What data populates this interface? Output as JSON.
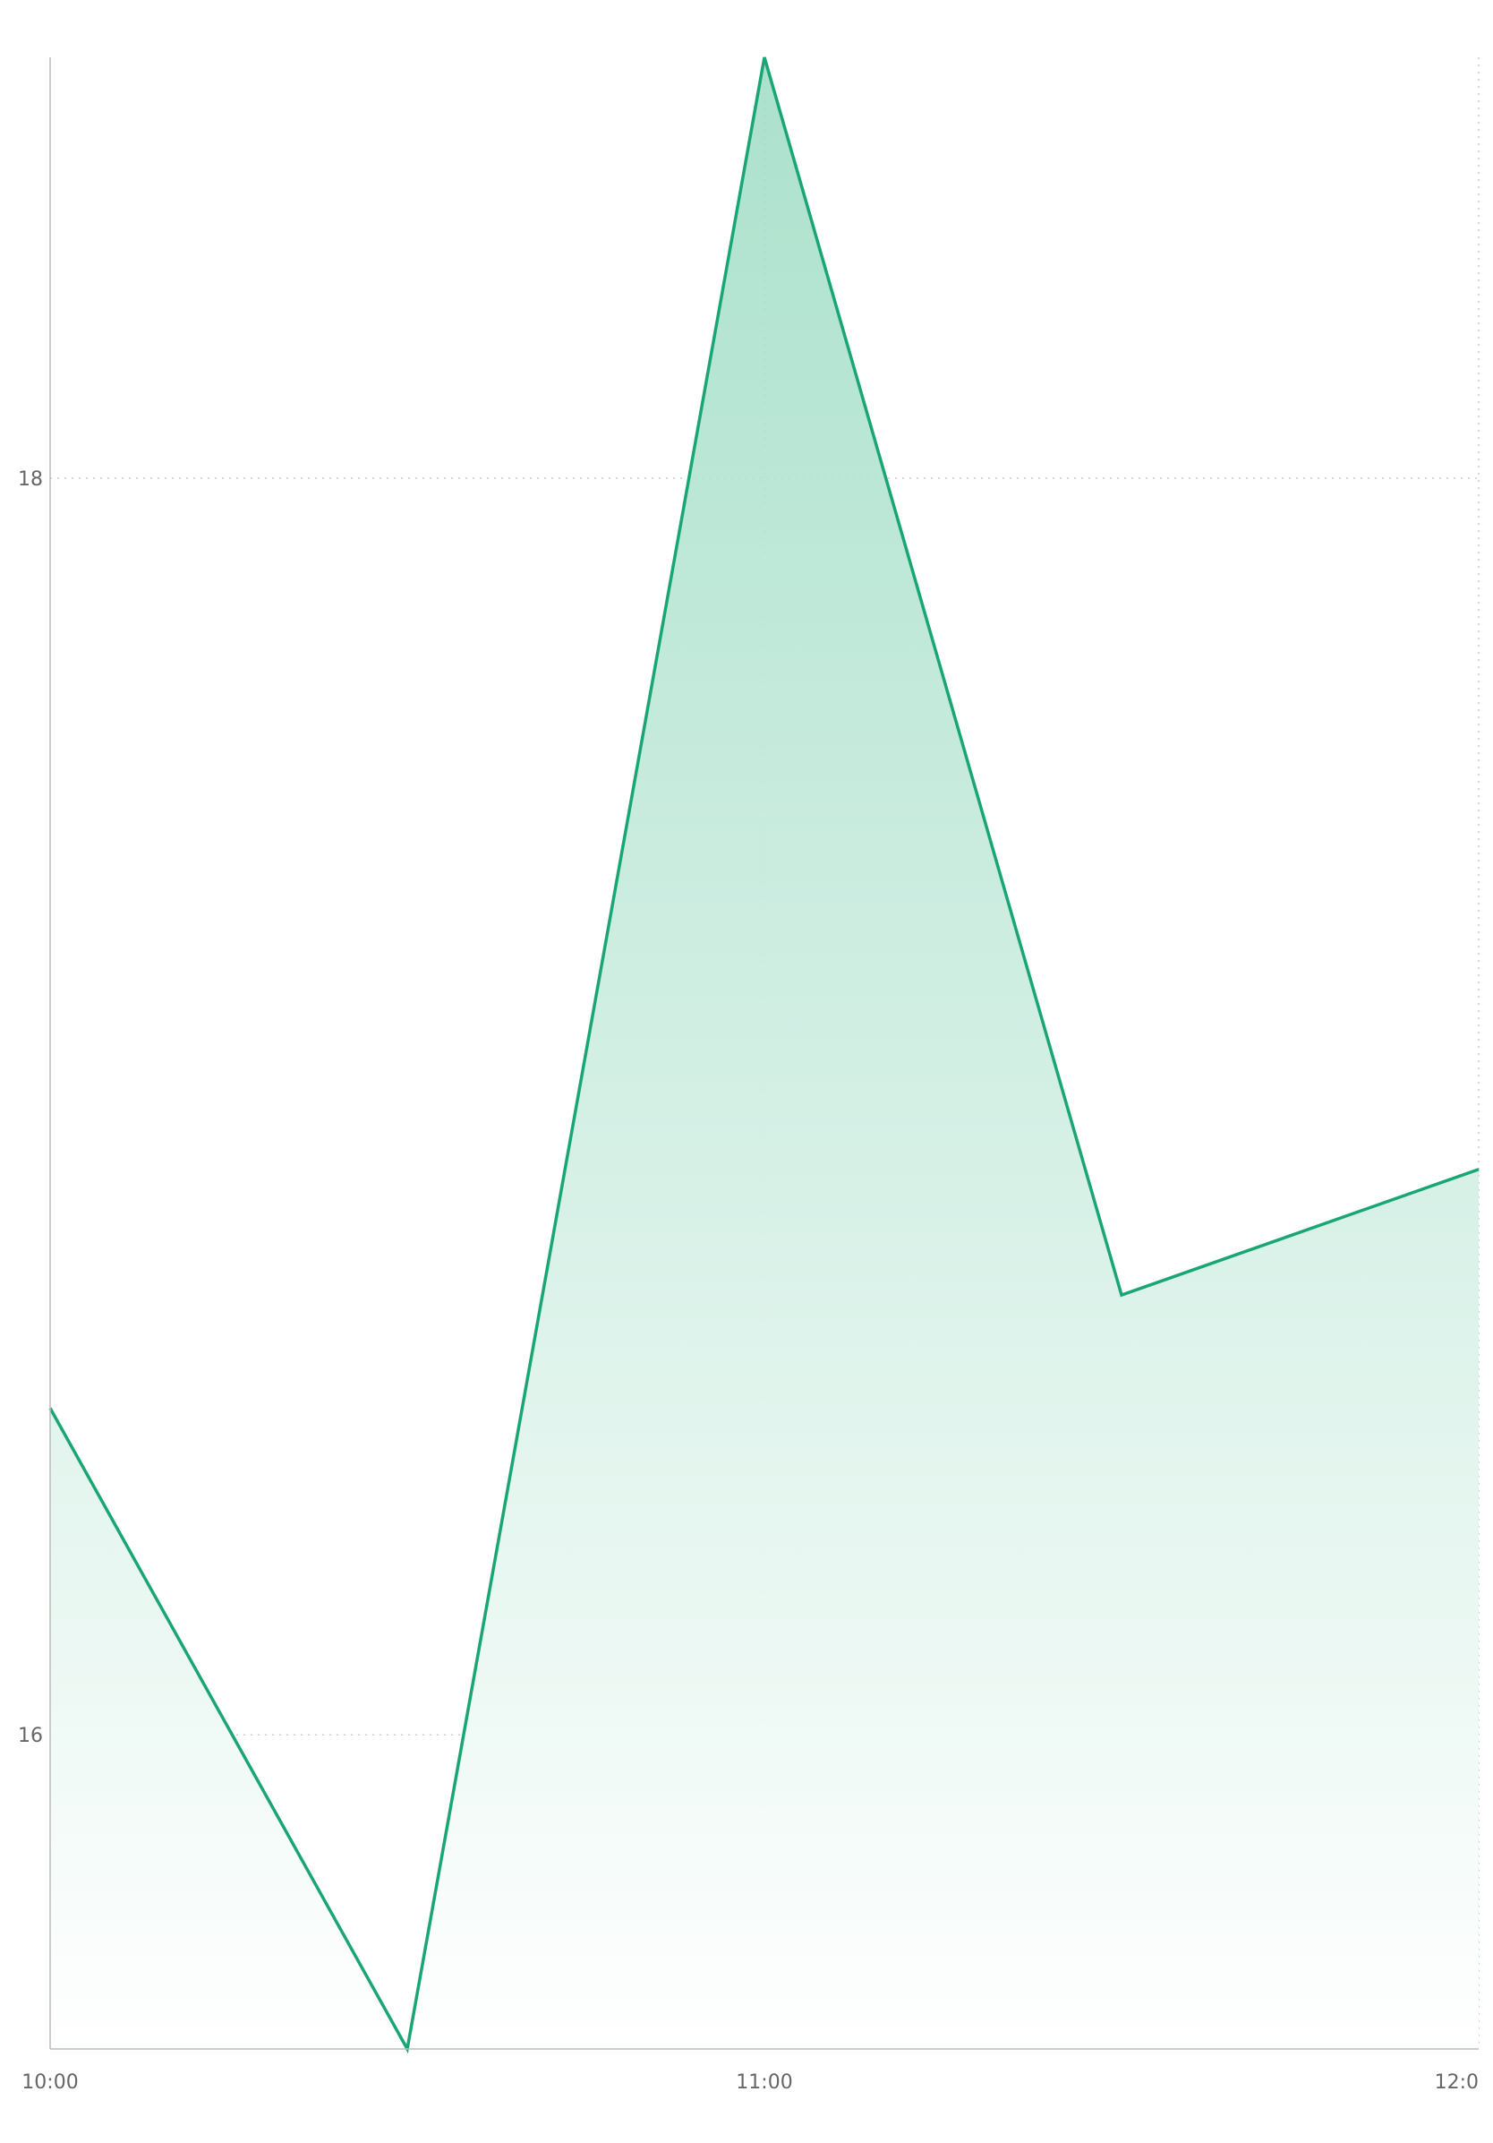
{
  "chart_data": {
    "type": "area",
    "title": "",
    "xlabel": "",
    "ylabel": "",
    "x": [
      "10:00",
      "10:30",
      "11:00",
      "11:30",
      "12:00"
    ],
    "values": [
      16.52,
      15.5,
      18.67,
      16.7,
      16.9
    ],
    "xlim": [
      "10:00",
      "12:00"
    ],
    "ylim": [
      15.5,
      18.67
    ],
    "x_ticks": [
      "10:00",
      "11:00",
      "12:0"
    ],
    "y_ticks": [
      16,
      18
    ],
    "grid": true,
    "colors": {
      "line": "#1aa673",
      "fill_top": "#9ddcc4",
      "fill_bottom": "#ffffff",
      "grid": "#cccccc",
      "axis": "#bbbbbb",
      "tick_label": "#666666"
    }
  }
}
